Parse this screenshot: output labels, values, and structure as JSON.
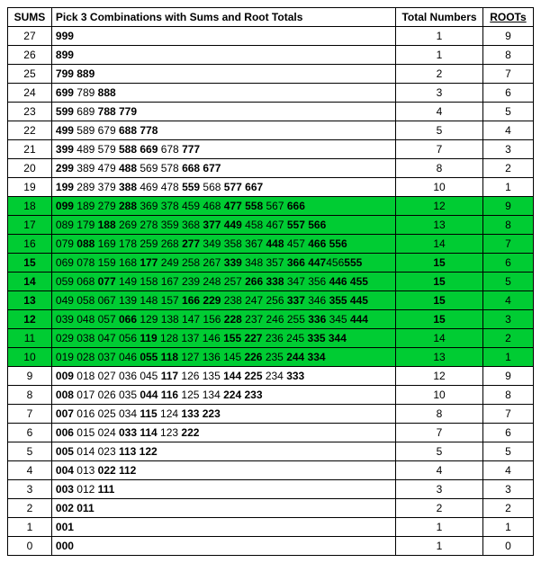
{
  "headers": {
    "sums": "SUMS",
    "comb": "Pick 3 Combinations with Sums and Root Totals",
    "total": "Total Numbers",
    "root": "ROOTs"
  },
  "highlight_color": "#00cc33",
  "rows": [
    {
      "sum": "27",
      "comb_html": "<b>999</b>",
      "total": "1",
      "root": "9",
      "hl": false
    },
    {
      "sum": "26",
      "comb_html": "<b>899</b>",
      "total": "1",
      "root": "8",
      "hl": false
    },
    {
      "sum": "25",
      "comb_html": "<b>799 889</b>",
      "total": "2",
      "root": "7",
      "hl": false
    },
    {
      "sum": "24",
      "comb_html": "<b>699</b> 789 <b>888</b>",
      "total": "3",
      "root": "6",
      "hl": false
    },
    {
      "sum": "23",
      "comb_html": "<b>599</b> 689 <b>788 779</b>",
      "total": "4",
      "root": "5",
      "hl": false
    },
    {
      "sum": "22",
      "comb_html": "<b>499</b> 589 679 <b>688 778</b>",
      "total": "5",
      "root": "4",
      "hl": false
    },
    {
      "sum": "21",
      "comb_html": "<b>399</b> 489 579 <b>588 669</b> 678 <b>777</b>",
      "total": "7",
      "root": "3",
      "hl": false
    },
    {
      "sum": "20",
      "comb_html": "<b>299</b> 389 479 <b>488</b> 569 578 <b>668 677</b>",
      "total": "8",
      "root": "2",
      "hl": false
    },
    {
      "sum": "19",
      "comb_html": "<b>199</b> 289 379 <b>388</b> 469 478 <b>559</b> 568 <b>577 667</b>",
      "total": "10",
      "root": "1",
      "hl": false
    },
    {
      "sum": "18",
      "comb_html": "<b>099</b> 189 279 <b>288</b> 369 378 459 468 <b>477 558</b> 567 <b>666</b>",
      "total": "12",
      "root": "9",
      "hl": true
    },
    {
      "sum": "17",
      "comb_html": "089 179 <b>188</b> 269 278 359 368 <b>377 449</b> 458 467 <b>557 566</b>",
      "total": "13",
      "root": "8",
      "hl": true
    },
    {
      "sum": "16",
      "comb_html": "079 <b>088</b> 169 178 259 268 <b>277</b> 349 358 367 <b>448</b> 457 <b>466 556</b>",
      "total": "14",
      "root": "7",
      "hl": true
    },
    {
      "sum": "<b>15</b>",
      "comb_html": "069 078 159 168 <b>177</b> 249 258 267 <b>339</b> 348 357 <b>366 447</b>456<b>555</b>",
      "total": "<b>15</b>",
      "root": "6",
      "hl": true
    },
    {
      "sum": "<b>14</b>",
      "comb_html": "059 068 <b>077</b> 149 158 167 239 248 257 <b>266 338</b> 347 356 <b>446 455</b>",
      "total": "<b>15</b>",
      "root": "5",
      "hl": true
    },
    {
      "sum": "<b>13</b>",
      "comb_html": "049 058 067 139 148 157 <b>166 229</b> 238 247 256 <b>337</b> 346 <b>355 445</b>",
      "total": "<b>15</b>",
      "root": "4",
      "hl": true
    },
    {
      "sum": "<b>12</b>",
      "comb_html": "039 048 057 <b>066</b> 129 138 147 156 <b>228</b> 237 246 255 <b>336</b> 345 <b>444</b>",
      "total": "<b>15</b>",
      "root": "3",
      "hl": true
    },
    {
      "sum": "11",
      "comb_html": "029 038 047 056 <b>119</b> 128 137 146 <b>155 227</b> 236 245 <b>335 344</b>",
      "total": "14",
      "root": "2",
      "hl": true
    },
    {
      "sum": "10",
      "comb_html": "019 028 037 046 <b>055 118</b> 127 136 145 <b>226</b> 235 <b>244 334</b>",
      "total": "13",
      "root": "1",
      "hl": true
    },
    {
      "sum": "9",
      "comb_html": "<b>009</b> 018 027 036 045 <b>117</b> 126 135 <b>144 225</b> 234 <b>333</b>",
      "total": "12",
      "root": "9",
      "hl": false
    },
    {
      "sum": "8",
      "comb_html": "<b>008</b> 017 026 035 <b>044 116</b> 125 134 <b>224 233</b>",
      "total": "10",
      "root": "8",
      "hl": false
    },
    {
      "sum": "7",
      "comb_html": "<b>007</b> 016 025 034 <b>115</b> 124 <b>133 223</b>",
      "total": "8",
      "root": "7",
      "hl": false
    },
    {
      "sum": "6",
      "comb_html": "<b>006</b> 015 024 <b>033 114</b> 123 <b>222</b>",
      "total": "7",
      "root": "6",
      "hl": false
    },
    {
      "sum": "5",
      "comb_html": "<b>005</b> 014 023 <b>113 122</b>",
      "total": "5",
      "root": "5",
      "hl": false
    },
    {
      "sum": "4",
      "comb_html": "<b>004</b> 013 <b>022 112</b>",
      "total": "4",
      "root": "4",
      "hl": false
    },
    {
      "sum": "3",
      "comb_html": "<b>003</b> 012 <b>111</b>",
      "total": "3",
      "root": "3",
      "hl": false
    },
    {
      "sum": "2",
      "comb_html": "<b>002 011</b>",
      "total": "2",
      "root": "2",
      "hl": false
    },
    {
      "sum": "1",
      "comb_html": "<b>001</b>",
      "total": "1",
      "root": "1",
      "hl": false
    },
    {
      "sum": "0",
      "comb_html": "<b>000</b>",
      "total": "1",
      "root": "0",
      "hl": false
    }
  ]
}
